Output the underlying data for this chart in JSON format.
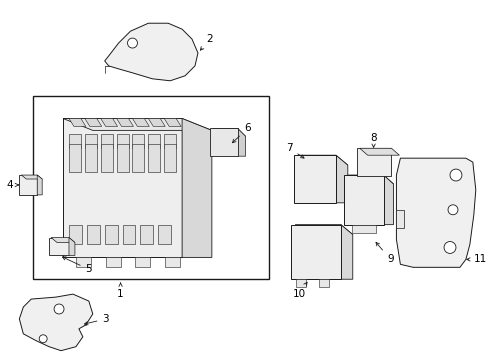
{
  "background": "#ffffff",
  "line_color": "#1a1a1a",
  "fig_width": 4.89,
  "fig_height": 3.6,
  "dpi": 100,
  "lw": 0.7
}
